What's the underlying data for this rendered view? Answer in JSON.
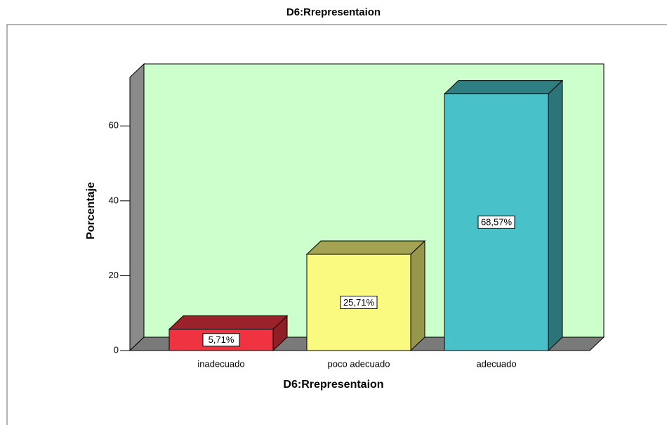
{
  "chart_data": {
    "type": "bar3d",
    "title": "D6:Rrepresentaion",
    "x_label": "D6:Rrepresentaion",
    "y_label": "Porcentaje",
    "categories": [
      "inadecuado",
      "poco adecuado",
      "adecuado"
    ],
    "values": [
      5.71,
      25.71,
      68.57
    ],
    "value_labels": [
      "5,71%",
      "25,71%",
      "68,57%"
    ],
    "colors": [
      "#ef3340",
      "#fafa80",
      "#48c2c8"
    ],
    "ylim": [
      0,
      73
    ],
    "yticks": [
      0,
      20,
      40,
      60
    ],
    "background": "#ccffcc"
  }
}
